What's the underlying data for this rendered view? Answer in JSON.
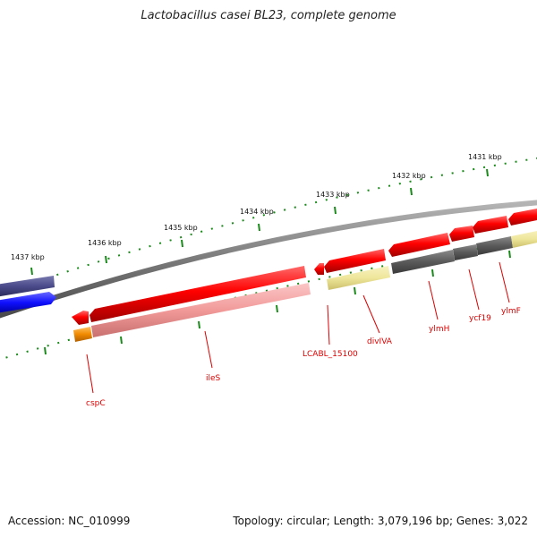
{
  "title": "Lactobacillus casei BL23, complete genome",
  "footer": {
    "accession": "Accession: NC_010999",
    "summary": "Topology: circular; Length: 3,079,196 bp; Genes: 3,022"
  },
  "ruler_labels": [
    "1437 kbp",
    "1436 kbp",
    "1435 kbp",
    "1434 kbp",
    "1433 kbp",
    "1432 kbp",
    "1431 kbp"
  ],
  "gene_labels": [
    "cspC",
    "ileS",
    "LCABL_15100",
    "divIVA",
    "ylmH",
    "ycf19",
    "ylmF"
  ],
  "colors": {
    "backbone": "#8a8a8a",
    "ruler_tick": "#1a8a1a",
    "gene_red": "#ff0000",
    "gene_pink": "#f29a9a",
    "gene_dark": "#555555",
    "gene_yellow": "#eee69a",
    "gene_orange": "#f08a00",
    "gene_navy": "#4a4a8a",
    "gene_blue": "#1010ff",
    "label_red": "#dd0000"
  }
}
